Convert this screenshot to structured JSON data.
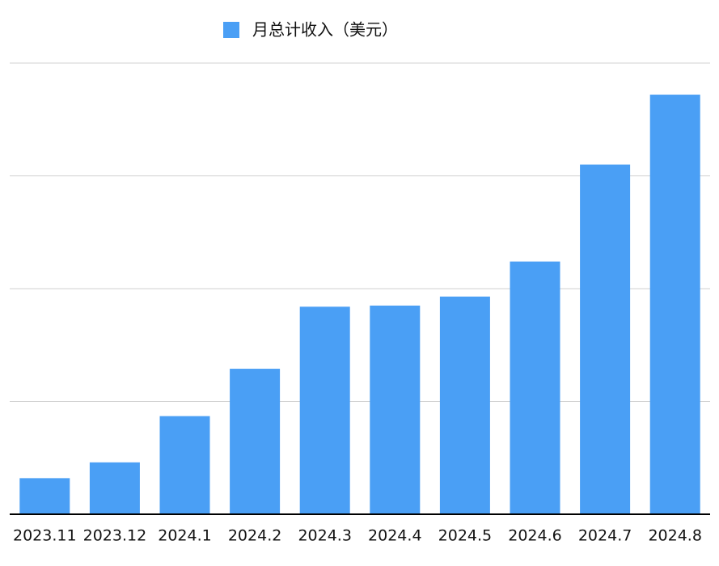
{
  "chart_data": {
    "type": "bar",
    "categories": [
      "2023.11",
      "2023.12",
      "2024.1",
      "2024.2",
      "2024.3",
      "2024.4",
      "2024.5",
      "2024.6",
      "2024.7",
      "2024.8"
    ],
    "series": [
      {
        "name": "月总计收入（美元）",
        "color": "#4a9ff5",
        "values": [
          0.32,
          0.46,
          0.87,
          1.29,
          1.84,
          1.85,
          1.93,
          2.24,
          3.1,
          3.72
        ]
      }
    ],
    "ylim": [
      0,
      4
    ],
    "yticks": [
      1,
      2,
      3,
      4
    ],
    "grid": true,
    "tick_labels": false,
    "legend": "top"
  }
}
